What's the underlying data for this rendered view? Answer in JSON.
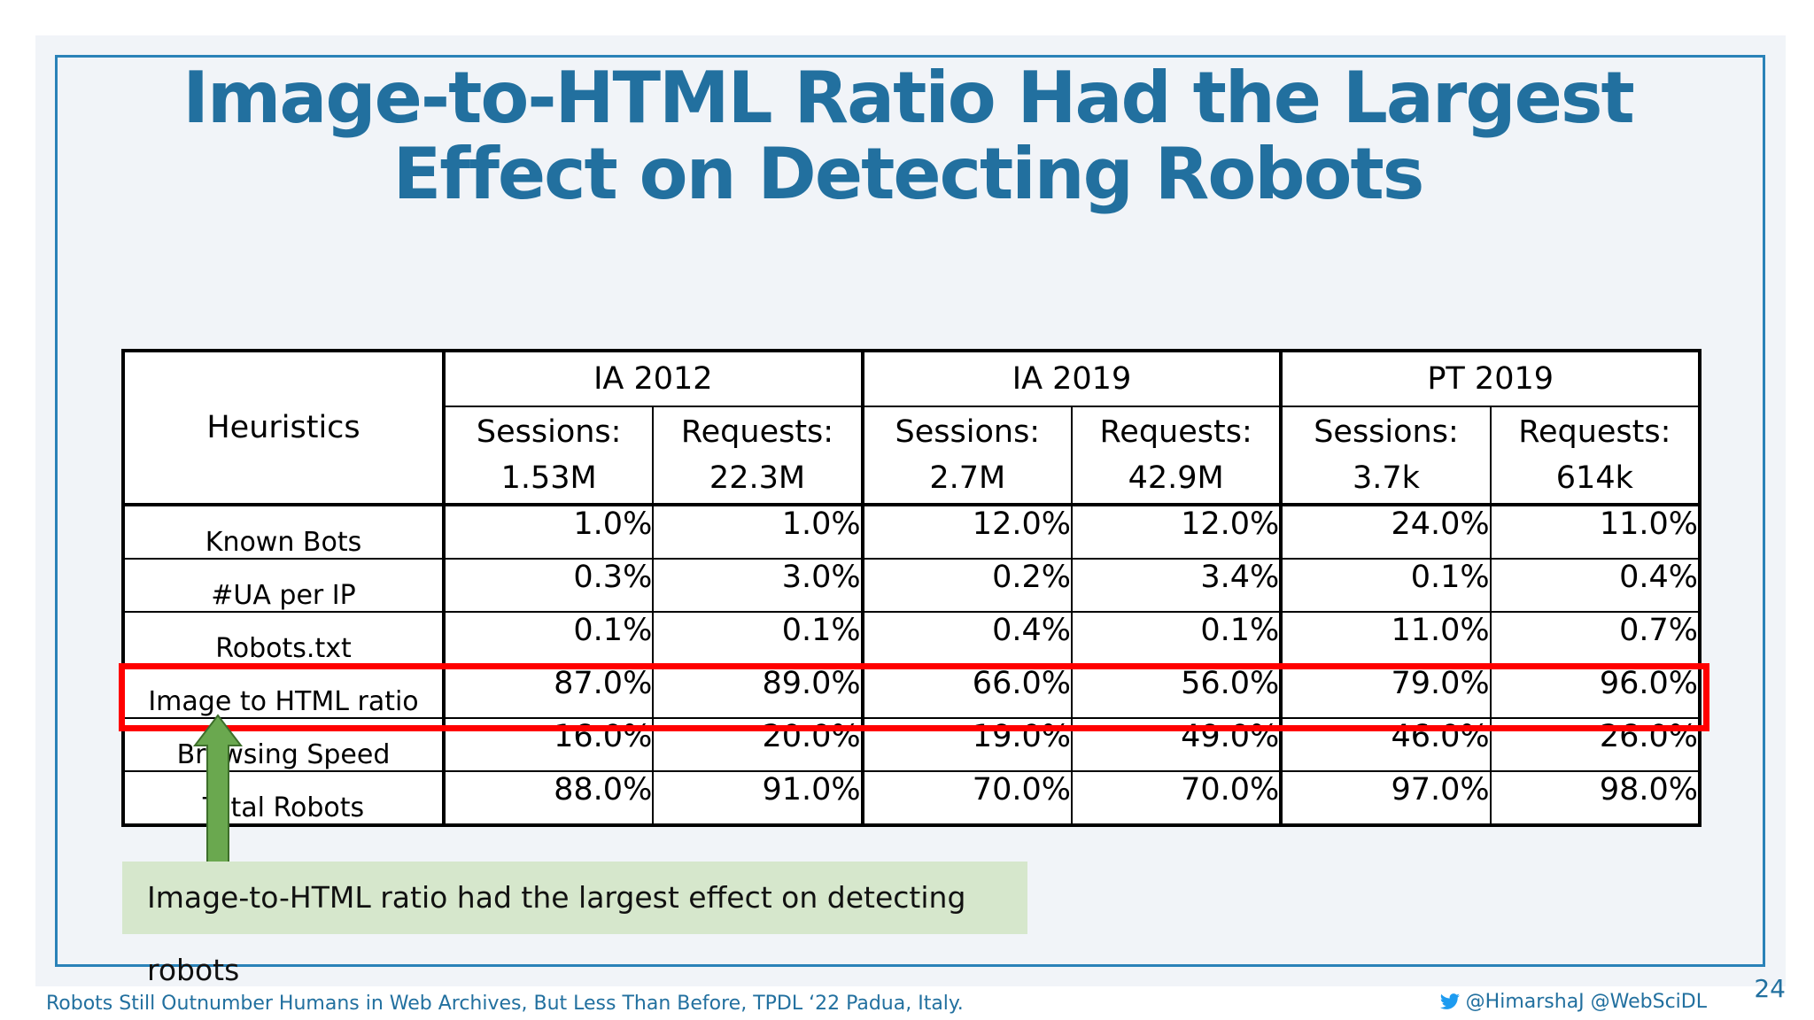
{
  "title": "Image-to-HTML Ratio Had the Largest Effect on Detecting Robots",
  "table": {
    "heuristics_header": "Heuristics",
    "groups": [
      "IA 2012",
      "IA 2019",
      "PT 2019"
    ],
    "subheaders": [
      {
        "label": "Sessions:",
        "value": "1.53M"
      },
      {
        "label": "Requests:",
        "value": "22.3M"
      },
      {
        "label": "Sessions:",
        "value": "2.7M"
      },
      {
        "label": "Requests:",
        "value": "42.9M"
      },
      {
        "label": "Sessions:",
        "value": "3.7k"
      },
      {
        "label": "Requests:",
        "value": "614k"
      }
    ],
    "rows": [
      {
        "label": "Known Bots",
        "values": [
          "1.0%",
          "1.0%",
          "12.0%",
          "12.0%",
          "24.0%",
          "11.0%"
        ]
      },
      {
        "label": "#UA per IP",
        "values": [
          "0.3%",
          "3.0%",
          "0.2%",
          "3.4%",
          "0.1%",
          "0.4%"
        ]
      },
      {
        "label": "Robots.txt",
        "values": [
          "0.1%",
          "0.1%",
          "0.4%",
          "0.1%",
          "11.0%",
          "0.7%"
        ]
      },
      {
        "label": "Image to HTML ratio",
        "values": [
          "87.0%",
          "89.0%",
          "66.0%",
          "56.0%",
          "79.0%",
          "96.0%"
        ]
      },
      {
        "label": "Browsing Speed",
        "values": [
          "16.0%",
          "20.0%",
          "19.0%",
          "49.0%",
          "46.0%",
          "26.0%"
        ]
      },
      {
        "label": "Total Robots",
        "values": [
          "88.0%",
          "91.0%",
          "70.0%",
          "70.0%",
          "97.0%",
          "98.0%"
        ]
      }
    ]
  },
  "callout": "Image-to-HTML ratio had the largest effect on detecting robots",
  "footer": {
    "left": "Robots Still Outnumber Humans in Web Archives, But Less Than Before, TPDL ‘22 Padua, Italy.",
    "right": "@HimarshaJ @WebSciDL",
    "icon": "twitter-bird-icon"
  },
  "page_number": "24",
  "colors": {
    "accent": "#22709f",
    "highlight": "#ff0000",
    "callout_bg": "#d6e7cc",
    "arrow": "#6aa84f"
  }
}
